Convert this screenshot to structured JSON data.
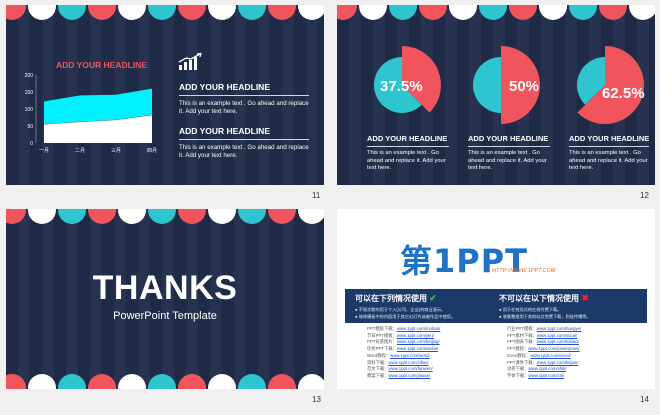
{
  "colors": {
    "navy": "#1f2a47",
    "teal": "#2ec5cf",
    "coral": "#f0545c",
    "white": "#ffffff",
    "cyan_area": "#00f0ff"
  },
  "slides": [
    {
      "number": "11",
      "chart_title": "ADD YOUR HEADLINE",
      "icon": "bar-growth-icon",
      "blocks": [
        {
          "headline": "ADD YOUR HEADLINE",
          "text": "This is an example text . Go ahead and replace it. Add your text here."
        },
        {
          "headline": "ADD YOUR HEADLINE",
          "text": "This is an example text . Go ahead and replace it. Add your text here."
        }
      ]
    },
    {
      "number": "12",
      "items": [
        {
          "percent": "37.5%",
          "headline": "ADD YOUR HEADLINE",
          "text": "This is an example text . Go ahead and replace it. Add your text here."
        },
        {
          "percent": "50%",
          "headline": "ADD YOUR HEADLINE",
          "text": "This is an example text . Go ahead and replace it. Add your text here."
        },
        {
          "percent": "62.5%",
          "headline": "ADD YOUR HEADLINE",
          "text": "This is an example text . Go ahead and replace it. Add your text here."
        }
      ]
    },
    {
      "number": "13",
      "title": "THANKS",
      "subtitle": "PowerPoint Template"
    },
    {
      "number": "14",
      "logo_main": "第1PPT",
      "logo_url": "HTTP://WWW.1PPT.COM",
      "allowed_title": "可以在下列情况使用",
      "forbidden_title": "不可以在以下情况使用",
      "allowed_items": [
        "不限次数的用于个人(公司、企业)的商业演示。",
        "修改模板中的内容用于其它幻灯片或者作品中使用。"
      ],
      "forbidden_items": [
        "用于任何形式的在线付费下载。",
        "收集整理用于其他站点免费下载，到处传播等。"
      ],
      "links_left": [
        {
          "label": "PPT模板下载：",
          "url": "www.1ppt.com/moban/"
        },
        {
          "label": "节日PPT模板：",
          "url": "www.1ppt.com/jieri/"
        },
        {
          "label": "PPT背景图片：",
          "url": "www.1ppt.com/beijing/"
        },
        {
          "label": "优秀PPT下载：",
          "url": "www.1ppt.com/xiazai/"
        },
        {
          "label": "Word教程：",
          "url": "www.1ppt.com/word/"
        },
        {
          "label": "资料下载：",
          "url": "www.1ppt.com/ziliao/"
        },
        {
          "label": "范文下载：",
          "url": "www.1ppt.com/fanwen/"
        },
        {
          "label": "教案下载：",
          "url": "www.1ppt.com/jiaoan/"
        }
      ],
      "links_right": [
        {
          "label": "行业PPT模板：",
          "url": "www.1ppt.com/hangye/"
        },
        {
          "label": "PPT素材下载：",
          "url": "www.1ppt.com/sucai/"
        },
        {
          "label": "PPT图表下载：",
          "url": "www.1ppt.com/tubiao/"
        },
        {
          "label": "PPT教程：",
          "url": "www.1ppt.com/powerpoint/"
        },
        {
          "label": "Excel教程：",
          "url": "www.1ppt.com/excel/"
        },
        {
          "label": "PPT课件下载：",
          "url": "www.1ppt.com/kejian/"
        },
        {
          "label": "试卷下载：",
          "url": "www.1ppt.com/shiti/"
        },
        {
          "label": "字体下载：",
          "url": "www.1ppt.com/ziti/"
        }
      ]
    }
  ],
  "chart_data": [
    {
      "type": "area",
      "title": "ADD YOUR HEADLINE",
      "categories": [
        "一月",
        "二月",
        "三月",
        "四月"
      ],
      "y_ticks": [
        "0",
        "50",
        "100",
        "150",
        "200"
      ],
      "ylim": [
        0,
        200
      ],
      "series": [
        {
          "values": [
            55,
            62,
            68,
            82
          ]
        },
        {
          "values": [
            122,
            140,
            142,
            160
          ]
        }
      ]
    },
    {
      "type": "pie",
      "charts": [
        {
          "values": [
            37.5,
            62.5
          ],
          "label": "37.5%"
        },
        {
          "values": [
            50,
            50
          ],
          "label": "50%"
        },
        {
          "values": [
            62.5,
            37.5
          ],
          "label": "62.5%"
        }
      ]
    }
  ]
}
